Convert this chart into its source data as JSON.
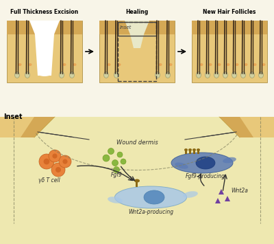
{
  "bg_color": "#f5f0d0",
  "skin_color": "#e8c87a",
  "skin_dark": "#d4a855",
  "wound_bg": "#ffffff",
  "hair_color": "#3a2a1a",
  "dermis_color": "#c8a060",
  "cell_blue_dark": "#5a7ab5",
  "cell_blue_light": "#a8c8e8",
  "nucleus_dark": "#2a4a8a",
  "nucleus_light": "#6090c0",
  "orange_cell": "#e8823a",
  "green_dot": "#8ab840",
  "purple_tri": "#7040a0",
  "receptor_color": "#8b6914",
  "title_top_left": "Full Thickness Excision",
  "title_top_mid": "Healing",
  "title_top_right": "New Hair Follicles",
  "inset_label": "Inset",
  "wound_dermis_label": "Wound dermis",
  "fgf9_label": "Fgf9",
  "gd_tcell_label": "γδ T cell",
  "fgf9_producing_label": "Fgf9-producing",
  "wnt2a_producing_label": "Wnt2a-producing",
  "wnt2a_label": "Wnt2a"
}
